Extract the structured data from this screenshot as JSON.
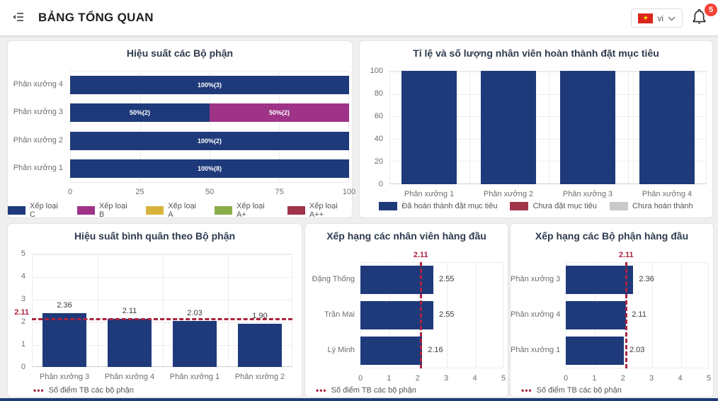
{
  "header": {
    "title": "BẢNG TỔNG QUAN",
    "language_selector": {
      "label": "vi",
      "star_glyph": "★"
    },
    "notification_count": "5"
  },
  "ui": {
    "legend_dots_glyph": "•••",
    "colors": {
      "bar_navy": "#1e3a7a",
      "magenta": "#9e3387",
      "yellow": "#d8b33c",
      "green": "#8aad4a",
      "maroon": "#a1334a",
      "gray": "#c9c9c9",
      "avg_line_red": "#ab2340"
    }
  },
  "chart_data": [
    {
      "id": "dept-performance",
      "type": "bar",
      "orientation": "horizontal",
      "stacked": true,
      "title": "Hiệu suất các Bộ phận",
      "categories": [
        "Phân xưởng 4",
        "Phân xưởng 3",
        "Phân xưởng 2",
        "Phân xưởng 1"
      ],
      "series": [
        {
          "name": "Xếp loại C",
          "color": "#1e3a7a",
          "values": [
            100,
            50,
            100,
            100
          ],
          "labels": [
            "100%(3)",
            "50%(2)",
            "100%(2)",
            "100%(8)"
          ]
        },
        {
          "name": "Xếp loại B",
          "color": "#9e3387",
          "values": [
            0,
            50,
            0,
            0
          ],
          "labels": [
            "",
            "50%(2)",
            "",
            ""
          ]
        }
      ],
      "xlim": [
        0,
        100
      ],
      "xticks": [
        0,
        25,
        50,
        75,
        100
      ],
      "legend": [
        {
          "label": "Xếp loại C",
          "color": "#1e3a7a"
        },
        {
          "label": "Xếp loại B",
          "color": "#9e3387"
        },
        {
          "label": "Xếp loại A",
          "color": "#d8b33c"
        },
        {
          "label": "Xếp loại A+",
          "color": "#8aad4a"
        },
        {
          "label": "Xếp loại A++",
          "color": "#a1334a"
        }
      ]
    },
    {
      "id": "goal-completion",
      "type": "bar",
      "orientation": "vertical",
      "title": "Tỉ lệ và số lượng nhân viên hoàn thành đặt mục tiêu",
      "categories": [
        "Phân xưởng 1",
        "Phân xưởng 2",
        "Phân xưởng 3",
        "Phân xưởng 4"
      ],
      "values": [
        100,
        100,
        100,
        100
      ],
      "bar_color": "#1e3a7a",
      "ylim": [
        0,
        100
      ],
      "yticks": [
        0,
        20,
        40,
        60,
        80,
        100
      ],
      "legend": [
        {
          "label": "Đã hoàn thành đặt mục tiêu",
          "color": "#1e3a7a"
        },
        {
          "label": "Chưa đặt mục tiêu",
          "color": "#a1334a"
        },
        {
          "label": "Chưa hoàn thành",
          "color": "#c9c9c9"
        }
      ]
    },
    {
      "id": "avg-by-dept",
      "type": "bar",
      "orientation": "vertical",
      "title": "Hiệu suất bình quân theo Bộ phận",
      "categories": [
        "Phân xưởng 3",
        "Phân xưởng 4",
        "Phân xưởng 1",
        "Phân xưởng 2"
      ],
      "values": [
        2.36,
        2.11,
        2.03,
        1.9
      ],
      "value_labels": [
        "2.36",
        "2.11",
        "2.03",
        "1.90"
      ],
      "bar_color": "#1e3a7a",
      "ylim": [
        0,
        5
      ],
      "yticks": [
        0,
        1,
        2,
        3,
        4,
        5
      ],
      "average_line": {
        "value": 2.11,
        "label": "2.11",
        "color": "#ab2340"
      },
      "legend": [
        {
          "label": "Số điểm TB các bộ phận",
          "color": "#ab2340",
          "style": "dots"
        }
      ]
    },
    {
      "id": "top-employees",
      "type": "bar",
      "orientation": "horizontal",
      "title": "Xếp hạng các nhân viên hàng đầu",
      "categories": [
        "Đặng Thống",
        "Trần Mai",
        "Lý Minh"
      ],
      "values": [
        2.55,
        2.55,
        2.16
      ],
      "value_labels": [
        "2.55",
        "2.55",
        "2.16"
      ],
      "bar_color": "#1e3a7a",
      "xlim": [
        0,
        5
      ],
      "xticks": [
        0,
        1,
        2,
        3,
        4,
        5
      ],
      "average_line": {
        "value": 2.11,
        "label": "2.11",
        "color": "#ab2340"
      },
      "legend": [
        {
          "label": "Số điểm TB các bộ phận",
          "color": "#ab2340",
          "style": "dots"
        }
      ]
    },
    {
      "id": "top-departments",
      "type": "bar",
      "orientation": "horizontal",
      "title": "Xếp hạng các Bộ phận hàng đầu",
      "categories": [
        "Phân xưởng 3",
        "Phân xưởng 4",
        "Phân xưởng 1"
      ],
      "values": [
        2.36,
        2.11,
        2.03
      ],
      "value_labels": [
        "2.36",
        "2.11",
        "2.03"
      ],
      "bar_color": "#1e3a7a",
      "xlim": [
        0,
        5
      ],
      "xticks": [
        0,
        1,
        2,
        3,
        4,
        5
      ],
      "average_line": {
        "value": 2.11,
        "label": "2.11",
        "color": "#ab2340"
      },
      "legend": [
        {
          "label": "Số điểm TB các bộ phận",
          "color": "#ab2340",
          "style": "dots"
        }
      ]
    }
  ]
}
